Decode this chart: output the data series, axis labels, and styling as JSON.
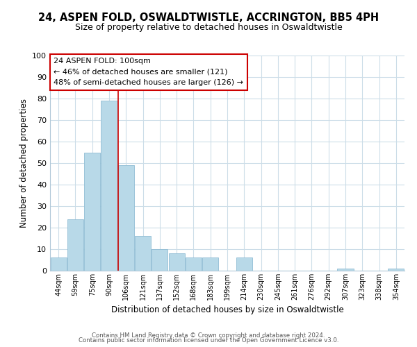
{
  "title": "24, ASPEN FOLD, OSWALDTWISTLE, ACCRINGTON, BB5 4PH",
  "subtitle": "Size of property relative to detached houses in Oswaldtwistle",
  "xlabel": "Distribution of detached houses by size in Oswaldtwistle",
  "ylabel": "Number of detached properties",
  "categories": [
    "44sqm",
    "59sqm",
    "75sqm",
    "90sqm",
    "106sqm",
    "121sqm",
    "137sqm",
    "152sqm",
    "168sqm",
    "183sqm",
    "199sqm",
    "214sqm",
    "230sqm",
    "245sqm",
    "261sqm",
    "276sqm",
    "292sqm",
    "307sqm",
    "323sqm",
    "338sqm",
    "354sqm"
  ],
  "values": [
    6,
    24,
    55,
    79,
    49,
    16,
    10,
    8,
    6,
    6,
    0,
    6,
    0,
    0,
    0,
    0,
    0,
    1,
    0,
    0,
    1
  ],
  "bar_color": "#b8d9e8",
  "bar_edgecolor": "#90bdd4",
  "highlight_index": 4,
  "highlight_color": "#cc0000",
  "ylim": [
    0,
    100
  ],
  "yticks": [
    0,
    10,
    20,
    30,
    40,
    50,
    60,
    70,
    80,
    90,
    100
  ],
  "annotation_title": "24 ASPEN FOLD: 100sqm",
  "annotation_line1": "← 46% of detached houses are smaller (121)",
  "annotation_line2": "48% of semi-detached houses are larger (126) →",
  "annotation_box_color": "#ffffff",
  "annotation_box_edgecolor": "#cc0000",
  "footer1": "Contains HM Land Registry data © Crown copyright and database right 2024.",
  "footer2": "Contains public sector information licensed under the Open Government Licence v3.0.",
  "background_color": "#ffffff",
  "grid_color": "#ccdde8"
}
